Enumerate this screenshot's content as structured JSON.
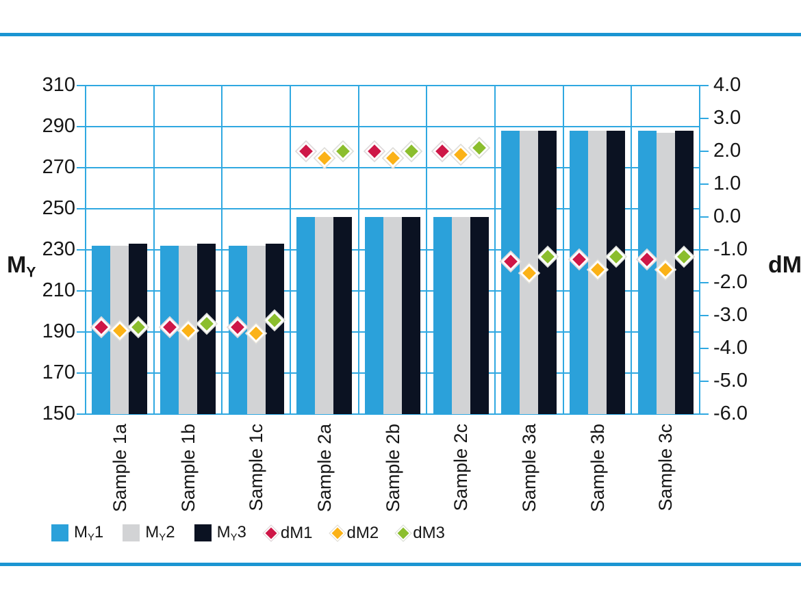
{
  "page": {
    "background": "#ffffff",
    "rule_color": "#1B95D2",
    "grid_color": "#2FA8E1",
    "text_color": "#161616"
  },
  "chart_data": {
    "type": "bar",
    "subtype": "grouped-bar-with-scatter-overlay",
    "categories": [
      "Sample 1a",
      "Sample 1b",
      "Sample 1c",
      "Sample 2a",
      "Sample 2b",
      "Sample 2c",
      "Sample 3a",
      "Sample 3b",
      "Sample 3c"
    ],
    "bar_series": [
      {
        "name": "MY1",
        "label_main": "M",
        "label_sub": "Y",
        "label_tail": "1",
        "color": "#2BA1DA",
        "axis": "left",
        "values": [
          232,
          232,
          232,
          246,
          246,
          246,
          288,
          288,
          288
        ]
      },
      {
        "name": "MY2",
        "label_main": "M",
        "label_sub": "Y",
        "label_tail": "2",
        "color": "#D2D3D5",
        "axis": "left",
        "values": [
          232,
          232,
          232,
          246,
          246,
          246,
          288,
          288,
          287
        ]
      },
      {
        "name": "MY3",
        "label_main": "M",
        "label_sub": "Y",
        "label_tail": "3",
        "color": "#0B1222",
        "axis": "left",
        "values": [
          233,
          233,
          233,
          246,
          246,
          246,
          288,
          288,
          288
        ]
      }
    ],
    "marker_series": [
      {
        "name": "dM1",
        "label_main": "dM1",
        "color": "#CE1747",
        "axis": "right",
        "over_bar": 0,
        "values": [
          -3.35,
          -3.35,
          -3.35,
          2.0,
          2.0,
          2.0,
          -1.35,
          -1.3,
          -1.3
        ]
      },
      {
        "name": "dM2",
        "label_main": "dM2",
        "color": "#FBB217",
        "axis": "right",
        "over_bar": 1,
        "values": [
          -3.45,
          -3.45,
          -3.55,
          1.8,
          1.8,
          1.9,
          -1.7,
          -1.6,
          -1.6
        ]
      },
      {
        "name": "dM3",
        "label_main": "dM3",
        "color": "#8BBE2D",
        "axis": "right",
        "over_bar": 2,
        "values": [
          -3.35,
          -3.25,
          -3.15,
          2.0,
          2.0,
          2.1,
          -1.2,
          -1.2,
          -1.2
        ]
      }
    ],
    "left_axis": {
      "label_main": "M",
      "label_sub": "Y",
      "min": 150,
      "max": 310,
      "tick_step": 20,
      "tick_labels": [
        "310",
        "290",
        "270",
        "250",
        "230",
        "210",
        "190",
        "170",
        "150"
      ]
    },
    "right_axis": {
      "label_main": "dM",
      "min": -6.0,
      "max": 4.0,
      "tick_step": 1.0,
      "tick_labels": [
        "4.0",
        "3.0",
        "2.0",
        "1.0",
        "0.0",
        "-1.0",
        "-2.0",
        "-3.0",
        "-4.0",
        "-5.0",
        "-6.0"
      ]
    },
    "grid": {
      "horizontal_step_left_units": 20,
      "vertical_between_groups": true,
      "legend_position": "bottom-left"
    }
  },
  "legend": [
    {
      "type": "square",
      "color": "#2BA1DA",
      "label_main": "M",
      "label_sub": "Y",
      "label_tail": "1"
    },
    {
      "type": "square",
      "color": "#D2D3D5",
      "label_main": "M",
      "label_sub": "Y",
      "label_tail": "2"
    },
    {
      "type": "square",
      "color": "#0B1222",
      "label_main": "M",
      "label_sub": "Y",
      "label_tail": "3"
    },
    {
      "type": "diamond",
      "color": "#CE1747",
      "label_main": "dM1",
      "label_sub": "",
      "label_tail": ""
    },
    {
      "type": "diamond",
      "color": "#FBB217",
      "label_main": "dM2",
      "label_sub": "",
      "label_tail": ""
    },
    {
      "type": "diamond",
      "color": "#8BBE2D",
      "label_main": "dM3",
      "label_sub": "",
      "label_tail": ""
    }
  ]
}
